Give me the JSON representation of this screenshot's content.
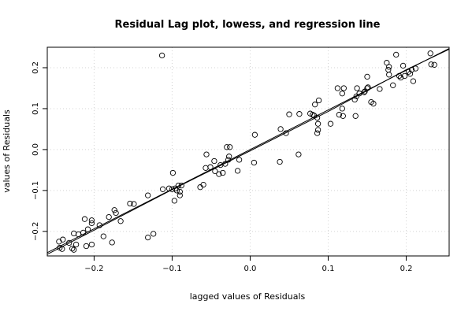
{
  "chart_data": {
    "type": "scatter",
    "title": "Residual Lag plot, lowess, and regression line",
    "xlabel": "lagged values of Residuals",
    "ylabel": "values of Residuals",
    "xlim": [
      -0.26,
      0.255
    ],
    "ylim": [
      -0.26,
      0.25
    ],
    "x_ticks": [
      -0.2,
      -0.1,
      0.0,
      0.1,
      0.2
    ],
    "x_tick_labels": [
      "−0.2",
      "−0.1",
      "0.0",
      "0.1",
      "0.2"
    ],
    "y_ticks": [
      -0.2,
      -0.1,
      0.0,
      0.1,
      0.2
    ],
    "y_tick_labels": [
      "−0.2",
      "−0.1",
      "0.0",
      "0.1",
      "0.2"
    ],
    "grid": true,
    "points": [
      [
        -0.245,
        -0.225
      ],
      [
        -0.24,
        -0.22
      ],
      [
        -0.244,
        -0.24
      ],
      [
        -0.241,
        -0.243
      ],
      [
        -0.232,
        -0.228
      ],
      [
        -0.228,
        -0.242
      ],
      [
        -0.226,
        -0.245
      ],
      [
        -0.226,
        -0.205
      ],
      [
        -0.223,
        -0.232
      ],
      [
        -0.22,
        -0.207
      ],
      [
        -0.214,
        -0.203
      ],
      [
        -0.212,
        -0.17
      ],
      [
        -0.21,
        -0.236
      ],
      [
        -0.208,
        -0.195
      ],
      [
        -0.203,
        -0.173
      ],
      [
        -0.203,
        -0.18
      ],
      [
        -0.203,
        -0.232
      ],
      [
        -0.193,
        -0.185
      ],
      [
        -0.188,
        -0.212
      ],
      [
        -0.181,
        -0.165
      ],
      [
        -0.177,
        -0.227
      ],
      [
        -0.174,
        -0.148
      ],
      [
        -0.172,
        -0.155
      ],
      [
        -0.166,
        -0.175
      ],
      [
        -0.154,
        -0.132
      ],
      [
        -0.149,
        -0.133
      ],
      [
        -0.131,
        -0.112
      ],
      [
        -0.131,
        -0.215
      ],
      [
        -0.124,
        -0.206
      ],
      [
        -0.113,
        0.23
      ],
      [
        -0.112,
        -0.097
      ],
      [
        -0.104,
        -0.095
      ],
      [
        -0.1,
        -0.097
      ],
      [
        -0.099,
        -0.057
      ],
      [
        -0.097,
        -0.125
      ],
      [
        -0.096,
        -0.095
      ],
      [
        -0.094,
        -0.1
      ],
      [
        -0.092,
        -0.088
      ],
      [
        -0.09,
        -0.103
      ],
      [
        -0.09,
        -0.112
      ],
      [
        -0.088,
        -0.088
      ],
      [
        -0.064,
        -0.092
      ],
      [
        -0.06,
        -0.086
      ],
      [
        -0.057,
        -0.045
      ],
      [
        -0.056,
        -0.012
      ],
      [
        -0.051,
        -0.043
      ],
      [
        -0.046,
        -0.028
      ],
      [
        -0.045,
        -0.053
      ],
      [
        -0.04,
        -0.06
      ],
      [
        -0.038,
        -0.038
      ],
      [
        -0.035,
        -0.057
      ],
      [
        -0.032,
        -0.035
      ],
      [
        -0.03,
        0.006
      ],
      [
        -0.028,
        -0.025
      ],
      [
        -0.027,
        -0.017
      ],
      [
        -0.026,
        0.006
      ],
      [
        -0.016,
        -0.052
      ],
      [
        -0.014,
        -0.025
      ],
      [
        0.005,
        -0.032
      ],
      [
        0.006,
        0.036
      ],
      [
        0.038,
        -0.03
      ],
      [
        0.039,
        0.05
      ],
      [
        0.046,
        0.04
      ],
      [
        0.05,
        0.086
      ],
      [
        0.062,
        -0.012
      ],
      [
        0.063,
        0.087
      ],
      [
        0.077,
        0.088
      ],
      [
        0.08,
        0.085
      ],
      [
        0.082,
        0.083
      ],
      [
        0.083,
        0.11
      ],
      [
        0.086,
        0.078
      ],
      [
        0.086,
        0.04
      ],
      [
        0.087,
        0.048
      ],
      [
        0.087,
        0.063
      ],
      [
        0.088,
        0.12
      ],
      [
        0.103,
        0.063
      ],
      [
        0.112,
        0.15
      ],
      [
        0.114,
        0.085
      ],
      [
        0.118,
        0.1
      ],
      [
        0.118,
        0.137
      ],
      [
        0.119,
        0.082
      ],
      [
        0.12,
        0.15
      ],
      [
        0.134,
        0.122
      ],
      [
        0.135,
        0.082
      ],
      [
        0.136,
        0.13
      ],
      [
        0.137,
        0.15
      ],
      [
        0.14,
        0.137
      ],
      [
        0.146,
        0.14
      ],
      [
        0.147,
        0.142
      ],
      [
        0.15,
        0.15
      ],
      [
        0.15,
        0.178
      ],
      [
        0.151,
        0.152
      ],
      [
        0.155,
        0.116
      ],
      [
        0.158,
        0.112
      ],
      [
        0.166,
        0.148
      ],
      [
        0.175,
        0.212
      ],
      [
        0.177,
        0.195
      ],
      [
        0.178,
        0.202
      ],
      [
        0.178,
        0.183
      ],
      [
        0.183,
        0.157
      ],
      [
        0.187,
        0.232
      ],
      [
        0.191,
        0.18
      ],
      [
        0.193,
        0.176
      ],
      [
        0.196,
        0.205
      ],
      [
        0.198,
        0.18
      ],
      [
        0.203,
        0.19
      ],
      [
        0.205,
        0.185
      ],
      [
        0.207,
        0.195
      ],
      [
        0.209,
        0.167
      ],
      [
        0.212,
        0.198
      ],
      [
        0.231,
        0.235
      ],
      [
        0.232,
        0.208
      ],
      [
        0.236,
        0.207
      ]
    ],
    "lines": [
      {
        "kind": "regression",
        "x": [
          -0.26,
          0.255
        ],
        "y": [
          -0.252,
          0.247
        ]
      },
      {
        "kind": "lowess",
        "x": [
          -0.26,
          -0.2,
          -0.1,
          0.0,
          0.1,
          0.2,
          0.255
        ],
        "y": [
          -0.256,
          -0.197,
          -0.098,
          -0.003,
          0.093,
          0.195,
          0.245
        ]
      }
    ]
  }
}
